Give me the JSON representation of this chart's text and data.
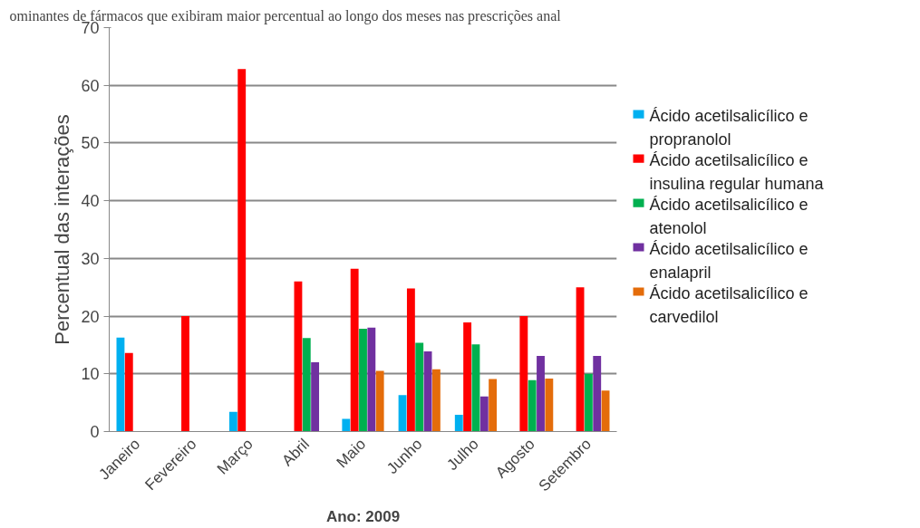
{
  "chart_data": {
    "type": "bar",
    "title": "ominantes de fármacos que exibiram maior percentual ao longo dos meses nas prescrições anal",
    "xlabel": "Ano: 2009",
    "ylabel": "Percentual das interações",
    "categories": [
      "Janeiro",
      "Fevereiro",
      "Março",
      "Abril",
      "Maio",
      "Junho",
      "Julho",
      "Agosto",
      "Setembro"
    ],
    "series": [
      {
        "name": "Ácido acetilsalicílico e propranolol",
        "color": "#00b0f0",
        "values": [
          16.3,
          null,
          3.4,
          null,
          2.2,
          6.3,
          2.9,
          null,
          null
        ]
      },
      {
        "name": "Ácido acetilsalicílico e insulina regular humana",
        "color": "#ff0000",
        "values": [
          13.6,
          20,
          62.8,
          26,
          28.2,
          24.8,
          18.9,
          20,
          25
        ]
      },
      {
        "name": "Ácido acetilsalicílico e atenolol",
        "color": "#00b050",
        "values": [
          null,
          null,
          null,
          16.2,
          17.8,
          15.4,
          15.1,
          8.9,
          10
        ]
      },
      {
        "name": "Ácido acetilsalicílico e enalapril",
        "color": "#7030a0",
        "values": [
          null,
          null,
          null,
          12,
          18,
          13.9,
          6.1,
          13.1,
          13.1
        ]
      },
      {
        "name": "Ácido acetilsalicílico e carvedilol",
        "color": "#e46c0a",
        "values": [
          null,
          null,
          null,
          null,
          10.5,
          10.8,
          9.1,
          9.2,
          7.1
        ]
      }
    ],
    "ylim": [
      0,
      70
    ],
    "yticks": [
      0,
      10,
      20,
      30,
      40,
      50,
      60,
      70
    ],
    "grid": "y",
    "legend": "right"
  }
}
